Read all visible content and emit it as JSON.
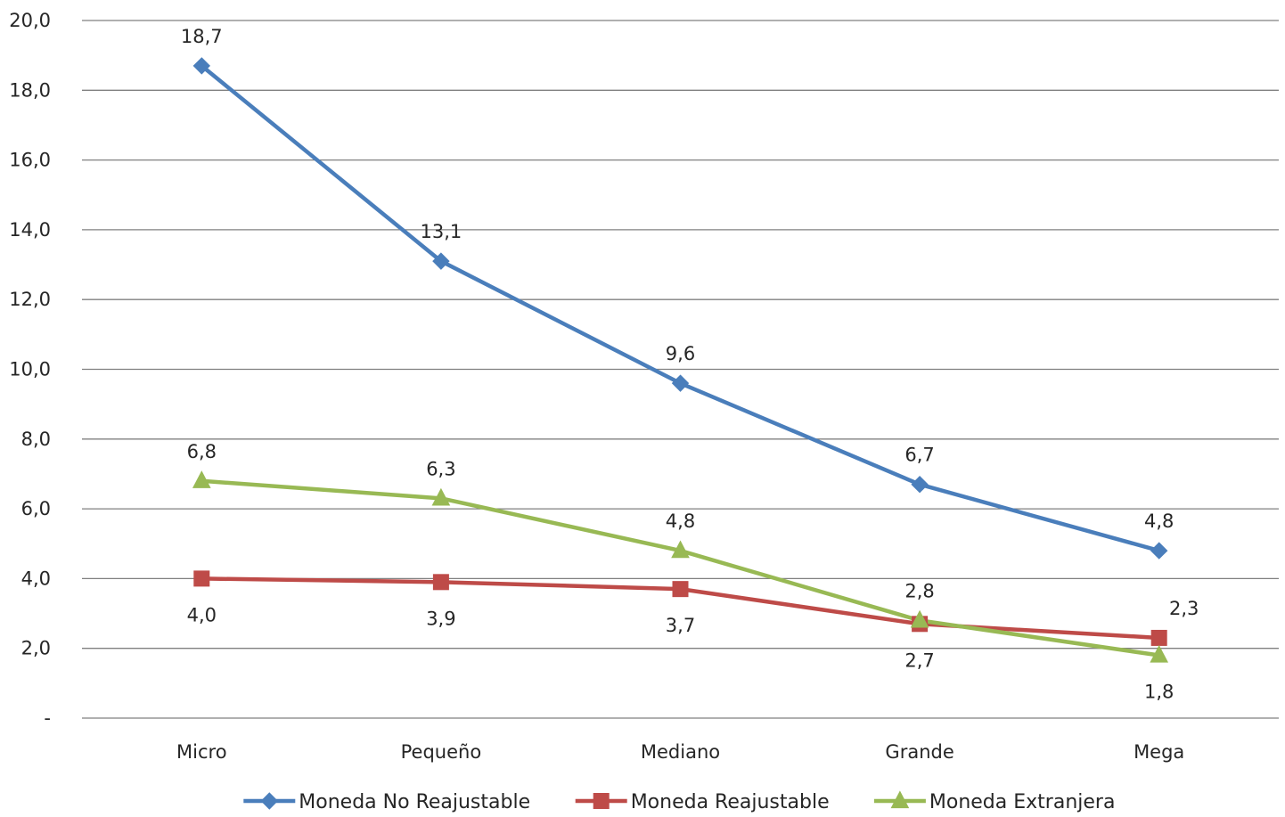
{
  "chart_data": {
    "type": "line",
    "categories": [
      "Micro",
      "Pequeño",
      "Mediano",
      "Grande",
      "Mega"
    ],
    "series": [
      {
        "name": "Moneda No Reajustable",
        "values": [
          18.7,
          13.1,
          9.6,
          6.7,
          4.8
        ],
        "labels": [
          "18,7",
          "13,1",
          "9,6",
          "6,7",
          "4,8"
        ],
        "color": "#4a7ebb",
        "marker": "diamond",
        "label_position": [
          "above",
          "above",
          "above",
          "above",
          "above"
        ]
      },
      {
        "name": "Moneda Reajustable",
        "values": [
          4.0,
          3.9,
          3.7,
          2.7,
          2.3
        ],
        "labels": [
          "4,0",
          "3,9",
          "3,7",
          "2,7",
          "2,3"
        ],
        "color": "#be4b48",
        "marker": "square",
        "label_position": [
          "below",
          "below",
          "below",
          "below",
          "above"
        ]
      },
      {
        "name": "Moneda Extranjera",
        "values": [
          6.8,
          6.3,
          4.8,
          2.8,
          1.8
        ],
        "labels": [
          "6,8",
          "6,3",
          "4,8",
          "2,8",
          "1,8"
        ],
        "color": "#98b954",
        "marker": "triangle",
        "label_position": [
          "above",
          "above",
          "above",
          "above",
          "below"
        ]
      }
    ],
    "ylim": [
      0,
      20
    ],
    "yticks": [
      0,
      2,
      4,
      6,
      8,
      10,
      12,
      14,
      16,
      18,
      20
    ],
    "ytick_labels": [
      "-",
      "2,0",
      "4,0",
      "6,0",
      "8,0",
      "10,0",
      "12,0",
      "14,0",
      "16,0",
      "18,0",
      "20,0"
    ],
    "grid": true,
    "legend_position": "bottom",
    "title": "",
    "xlabel": "",
    "ylabel": ""
  }
}
